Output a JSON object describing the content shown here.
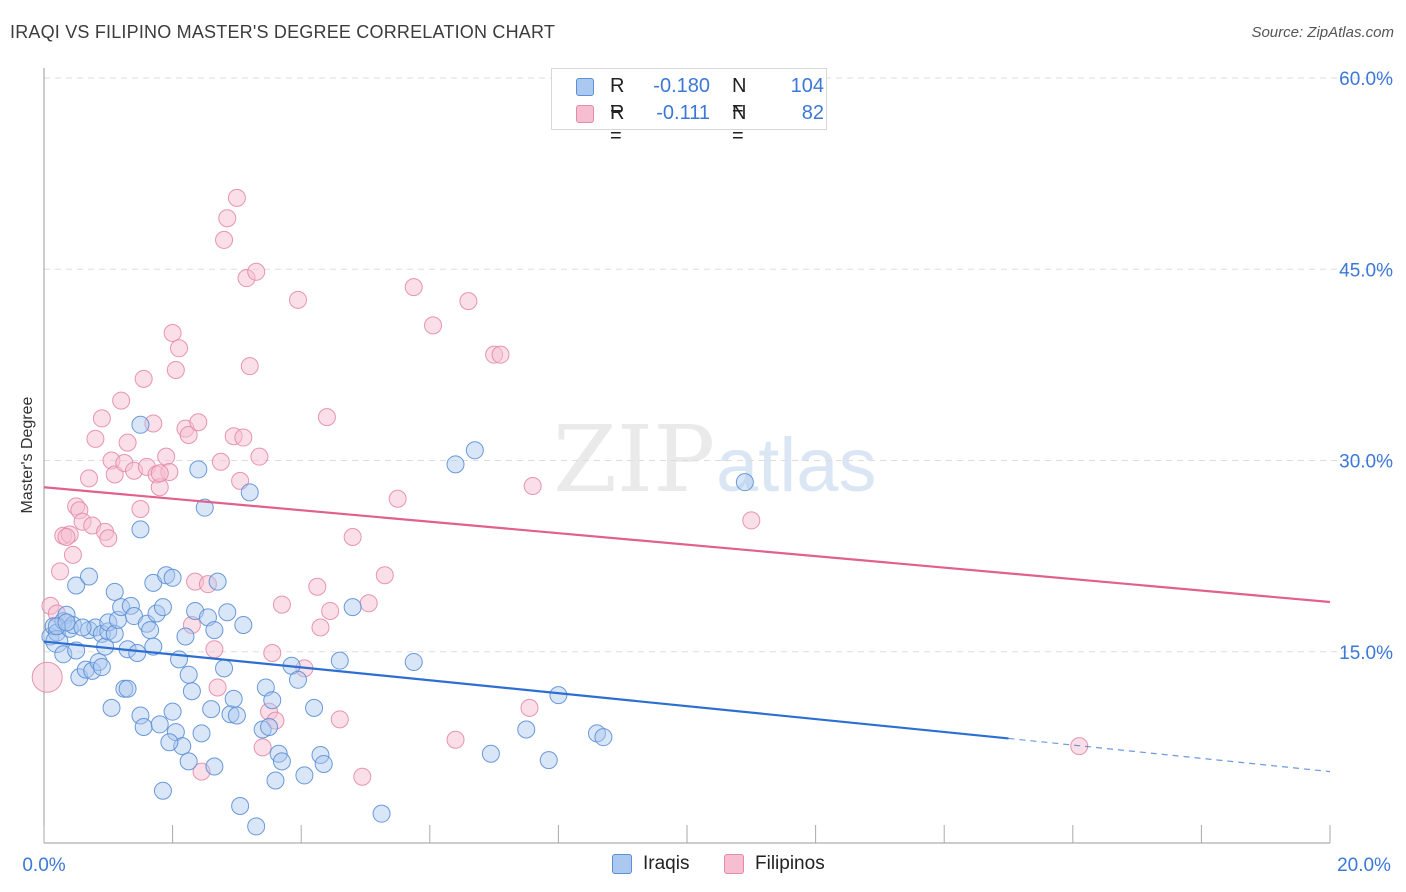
{
  "title": "IRAQI VS FILIPINO MASTER'S DEGREE CORRELATION CHART",
  "source": "Source: ZipAtlas.com",
  "watermark": {
    "zip": "ZIP",
    "atlas": "atlas"
  },
  "colors": {
    "iraqis_fill": "#aac8f0",
    "iraqis_stroke": "#5b8fd6",
    "iraqis_line": "#2d6fd1",
    "filipinos_fill": "#f5bfd1",
    "filipinos_stroke": "#e58aa8",
    "filipinos_line": "#e0618c",
    "tick_label": "#3c78d8",
    "grid": "#dddddd"
  },
  "legend": {
    "rows": [
      {
        "r_label": "R =",
        "r_value": "-0.180",
        "n_label": "N =",
        "n_value": "104"
      },
      {
        "r_label": "R =",
        "r_value": "-0.111",
        "n_label": "N =",
        "n_value": "82"
      }
    ]
  },
  "bottom_legend": {
    "iraqis": "Iraqis",
    "filipinos": "Filipinos"
  },
  "chart_data": {
    "type": "scatter",
    "ylabel": "Master's Degree",
    "xlim": [
      0,
      20
    ],
    "ylim": [
      0,
      60
    ],
    "x_tick_labels": [
      "0.0%",
      "20.0%"
    ],
    "y_ticks": [
      15,
      30,
      45,
      60
    ],
    "y_tick_labels": [
      "15.0%",
      "30.0%",
      "45.0%",
      "60.0%"
    ],
    "grid": "horizontal dashed",
    "legend_placement": "top-center",
    "series": [
      {
        "name": "Iraqis",
        "R": -0.18,
        "N": 104,
        "trend": {
          "x0": 0,
          "y0": 15.8,
          "x1": 15,
          "y1": 8.2,
          "dash_to_x": 20,
          "dash_to_y": 5.6
        },
        "points": [
          [
            0.1,
            16.2
          ],
          [
            0.15,
            17.0
          ],
          [
            0.2,
            16.5
          ],
          [
            0.2,
            15.8
          ],
          [
            0.3,
            17.4
          ],
          [
            0.35,
            17.9
          ],
          [
            0.3,
            14.8
          ],
          [
            0.4,
            16.8
          ],
          [
            0.45,
            17.1
          ],
          [
            0.5,
            20.2
          ],
          [
            0.55,
            13.0
          ],
          [
            0.65,
            13.6
          ],
          [
            0.7,
            20.9
          ],
          [
            0.75,
            13.5
          ],
          [
            0.7,
            16.7
          ],
          [
            0.8,
            16.9
          ],
          [
            0.85,
            14.2
          ],
          [
            0.9,
            16.4
          ],
          [
            0.95,
            15.4
          ],
          [
            1.0,
            16.6
          ],
          [
            1.0,
            17.3
          ],
          [
            1.05,
            10.6
          ],
          [
            1.1,
            16.4
          ],
          [
            1.1,
            19.7
          ],
          [
            1.15,
            17.5
          ],
          [
            1.2,
            18.5
          ],
          [
            1.25,
            12.1
          ],
          [
            1.3,
            15.2
          ],
          [
            1.35,
            18.6
          ],
          [
            1.4,
            17.8
          ],
          [
            1.45,
            14.9
          ],
          [
            1.5,
            24.6
          ],
          [
            1.5,
            10.0
          ],
          [
            1.55,
            9.1
          ],
          [
            1.6,
            17.2
          ],
          [
            1.65,
            16.7
          ],
          [
            1.7,
            15.4
          ],
          [
            1.7,
            20.4
          ],
          [
            1.75,
            18.0
          ],
          [
            1.8,
            9.3
          ],
          [
            1.85,
            4.1
          ],
          [
            1.85,
            18.5
          ],
          [
            1.9,
            21.0
          ],
          [
            2.0,
            10.3
          ],
          [
            2.0,
            20.8
          ],
          [
            2.05,
            8.7
          ],
          [
            2.1,
            14.4
          ],
          [
            2.15,
            7.6
          ],
          [
            2.2,
            16.2
          ],
          [
            2.25,
            6.4
          ],
          [
            2.3,
            11.9
          ],
          [
            2.35,
            18.2
          ],
          [
            2.4,
            29.3
          ],
          [
            2.45,
            8.6
          ],
          [
            2.5,
            26.3
          ],
          [
            2.55,
            17.7
          ],
          [
            2.6,
            10.5
          ],
          [
            2.65,
            6.0
          ],
          [
            2.7,
            20.5
          ],
          [
            2.8,
            13.7
          ],
          [
            2.85,
            18.1
          ],
          [
            2.9,
            10.1
          ],
          [
            2.95,
            11.3
          ],
          [
            3.05,
            2.9
          ],
          [
            3.0,
            10.0
          ],
          [
            3.2,
            27.5
          ],
          [
            3.4,
            8.9
          ],
          [
            3.45,
            12.2
          ],
          [
            3.5,
            9.1
          ],
          [
            3.55,
            11.2
          ],
          [
            3.6,
            4.9
          ],
          [
            3.65,
            7.0
          ],
          [
            3.7,
            6.4
          ],
          [
            3.85,
            13.9
          ],
          [
            3.95,
            12.8
          ],
          [
            4.05,
            5.3
          ],
          [
            4.2,
            10.6
          ],
          [
            4.3,
            6.9
          ],
          [
            4.35,
            6.2
          ],
          [
            4.6,
            14.3
          ],
          [
            4.8,
            18.5
          ],
          [
            5.25,
            2.3
          ],
          [
            5.75,
            14.2
          ],
          [
            6.4,
            29.7
          ],
          [
            6.7,
            30.8
          ],
          [
            6.95,
            7.0
          ],
          [
            7.5,
            8.9
          ],
          [
            7.85,
            6.5
          ],
          [
            8.0,
            11.6
          ],
          [
            8.6,
            8.6
          ],
          [
            8.7,
            8.3
          ],
          [
            10.9,
            28.3
          ],
          [
            1.5,
            32.8
          ],
          [
            3.1,
            17.1
          ],
          [
            0.2,
            17.0
          ],
          [
            0.5,
            15.1
          ],
          [
            2.65,
            16.7
          ],
          [
            1.3,
            12.1
          ],
          [
            3.3,
            1.3
          ],
          [
            0.9,
            13.8
          ],
          [
            1.95,
            7.9
          ],
          [
            2.25,
            13.2
          ],
          [
            0.35,
            17.3
          ],
          [
            0.6,
            16.9
          ]
        ]
      },
      {
        "name": "Filipinos",
        "R": -0.111,
        "N": 82,
        "trend": {
          "x0": 0,
          "y0": 27.9,
          "x1": 20,
          "y1": 18.9
        },
        "points": [
          [
            0.05,
            13.0
          ],
          [
            0.1,
            18.6
          ],
          [
            0.2,
            18.0
          ],
          [
            0.25,
            21.3
          ],
          [
            0.3,
            24.1
          ],
          [
            0.4,
            24.2
          ],
          [
            0.45,
            22.6
          ],
          [
            0.5,
            26.4
          ],
          [
            0.55,
            26.1
          ],
          [
            0.6,
            25.2
          ],
          [
            0.7,
            28.6
          ],
          [
            0.75,
            24.9
          ],
          [
            0.8,
            31.7
          ],
          [
            0.9,
            33.3
          ],
          [
            0.95,
            24.4
          ],
          [
            1.0,
            23.9
          ],
          [
            1.05,
            30.0
          ],
          [
            1.1,
            28.9
          ],
          [
            1.2,
            34.7
          ],
          [
            1.25,
            29.8
          ],
          [
            1.3,
            31.4
          ],
          [
            1.4,
            29.2
          ],
          [
            1.5,
            26.2
          ],
          [
            1.55,
            36.4
          ],
          [
            1.6,
            29.5
          ],
          [
            1.7,
            32.9
          ],
          [
            1.75,
            28.9
          ],
          [
            1.8,
            27.9
          ],
          [
            1.9,
            30.3
          ],
          [
            1.95,
            29.1
          ],
          [
            2.0,
            40.0
          ],
          [
            2.05,
            37.1
          ],
          [
            2.1,
            38.8
          ],
          [
            2.2,
            32.5
          ],
          [
            2.25,
            32.0
          ],
          [
            2.3,
            17.1
          ],
          [
            2.35,
            20.5
          ],
          [
            2.4,
            33.0
          ],
          [
            2.45,
            5.6
          ],
          [
            2.55,
            20.3
          ],
          [
            2.65,
            15.2
          ],
          [
            2.7,
            12.2
          ],
          [
            2.75,
            29.9
          ],
          [
            2.8,
            47.3
          ],
          [
            2.85,
            49.0
          ],
          [
            2.95,
            31.9
          ],
          [
            3.0,
            50.6
          ],
          [
            3.05,
            28.4
          ],
          [
            3.1,
            31.8
          ],
          [
            3.15,
            44.3
          ],
          [
            3.2,
            37.4
          ],
          [
            3.3,
            44.8
          ],
          [
            3.35,
            30.3
          ],
          [
            3.4,
            7.5
          ],
          [
            3.5,
            10.3
          ],
          [
            3.55,
            14.9
          ],
          [
            3.6,
            9.6
          ],
          [
            3.7,
            18.7
          ],
          [
            3.95,
            42.6
          ],
          [
            4.05,
            13.7
          ],
          [
            4.25,
            20.1
          ],
          [
            4.3,
            16.9
          ],
          [
            4.4,
            33.4
          ],
          [
            4.45,
            18.2
          ],
          [
            4.6,
            9.7
          ],
          [
            4.8,
            24.0
          ],
          [
            4.95,
            5.2
          ],
          [
            5.05,
            18.8
          ],
          [
            5.3,
            21.0
          ],
          [
            5.5,
            27.0
          ],
          [
            5.75,
            43.6
          ],
          [
            6.05,
            40.6
          ],
          [
            6.4,
            8.1
          ],
          [
            6.6,
            42.5
          ],
          [
            7.0,
            38.3
          ],
          [
            7.1,
            38.3
          ],
          [
            7.55,
            10.6
          ],
          [
            7.6,
            28.0
          ],
          [
            11.0,
            25.3
          ],
          [
            16.1,
            7.6
          ],
          [
            1.8,
            29.0
          ],
          [
            0.35,
            24.0
          ]
        ]
      }
    ]
  }
}
